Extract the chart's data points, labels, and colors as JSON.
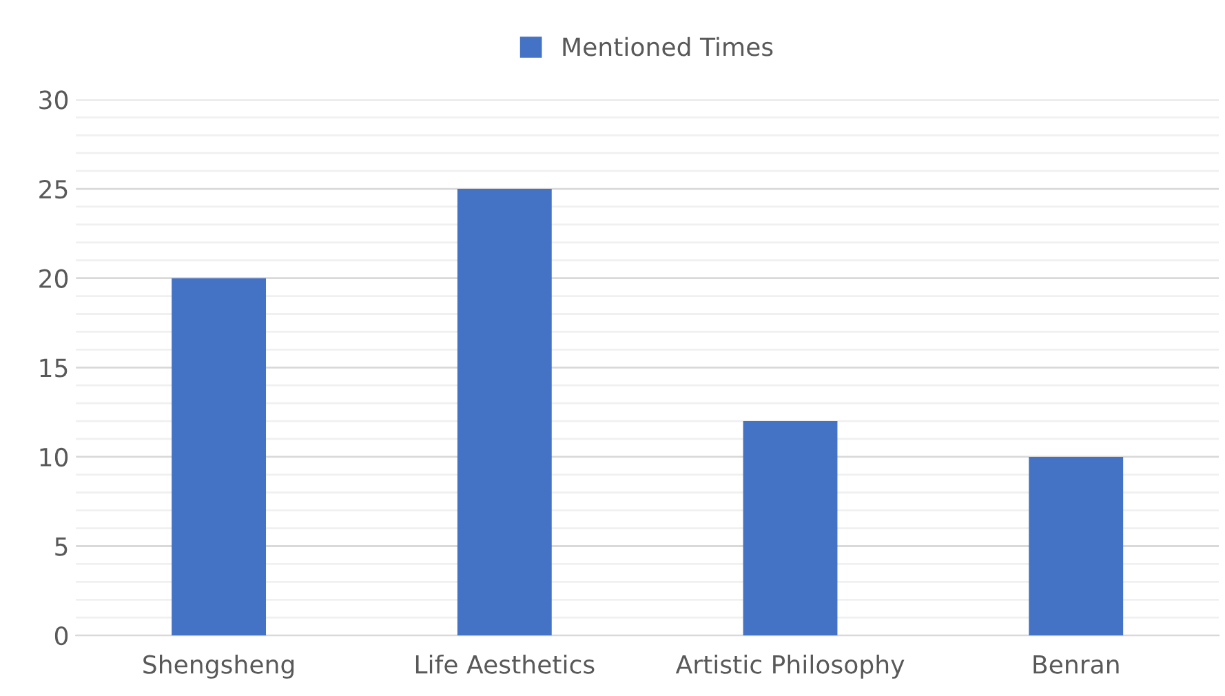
{
  "chart_data": {
    "type": "bar",
    "categories": [
      "Shengsheng",
      "Life Aesthetics",
      "Artistic Philosophy",
      "Benran"
    ],
    "series": [
      {
        "name": "Mentioned Times",
        "color": "#4472c4",
        "values": [
          20,
          25,
          12,
          10
        ]
      }
    ],
    "ylim": [
      0,
      30
    ],
    "yticks": [
      0,
      5,
      10,
      15,
      20,
      25,
      30
    ],
    "grid": "y",
    "legend": "top"
  }
}
